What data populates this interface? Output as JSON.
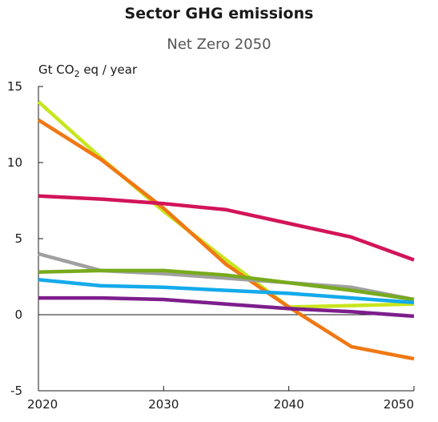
{
  "chart_data": {
    "type": "line",
    "title": "Sector GHG emissions",
    "subtitle": "Net Zero 2050",
    "ylabel": {
      "prefix": "Gt CO",
      "subscript": "2",
      "suffix": " eq / year"
    },
    "xlabel": "",
    "x": [
      2020,
      2025,
      2030,
      2035,
      2040,
      2045,
      2050
    ],
    "xticks": [
      2020,
      2030,
      2040,
      2050
    ],
    "yticks": [
      -5,
      0,
      5,
      10,
      15
    ],
    "xlim": [
      2020,
      2050
    ],
    "ylim": [
      -5,
      15
    ],
    "grid": false,
    "series": [
      {
        "color": "#c8e61e",
        "values": [
          14.0,
          10.3,
          6.8,
          3.6,
          0.5,
          0.6,
          0.7
        ]
      },
      {
        "color": "#f07814",
        "values": [
          12.8,
          10.2,
          7.0,
          3.3,
          0.5,
          -2.1,
          -2.9
        ]
      },
      {
        "color": "#d2145a",
        "values": [
          7.8,
          7.6,
          7.3,
          6.9,
          6.0,
          5.1,
          3.6
        ]
      },
      {
        "color": "#a0a0a0",
        "values": [
          4.0,
          2.9,
          2.7,
          2.4,
          2.1,
          1.8,
          1.0
        ]
      },
      {
        "color": "#78aa1e",
        "values": [
          2.8,
          2.9,
          2.9,
          2.6,
          2.1,
          1.6,
          1.0
        ]
      },
      {
        "color": "#14aaeb",
        "values": [
          2.3,
          1.9,
          1.8,
          1.6,
          1.4,
          1.1,
          0.8
        ]
      },
      {
        "color": "#7d1e8c",
        "values": [
          1.1,
          1.1,
          1.0,
          0.7,
          0.4,
          0.2,
          -0.1
        ]
      }
    ]
  }
}
